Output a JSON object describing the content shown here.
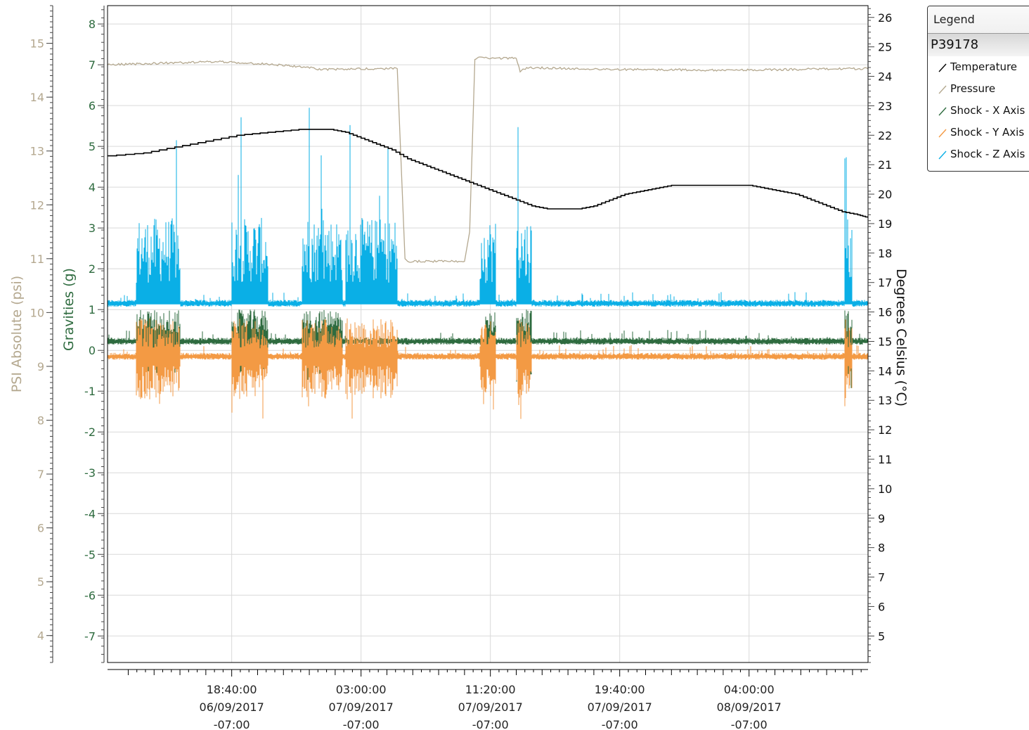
{
  "chart_data": {
    "type": "line",
    "x_axis": {
      "ticks": [
        {
          "time": "18:40:00",
          "date": "06/09/2017",
          "tz": "-07:00"
        },
        {
          "time": "03:00:00",
          "date": "07/09/2017",
          "tz": "-07:00"
        },
        {
          "time": "11:20:00",
          "date": "07/09/2017",
          "tz": "-07:00"
        },
        {
          "time": "19:40:00",
          "date": "07/09/2017",
          "tz": "-07:00"
        },
        {
          "time": "04:00:00",
          "date": "08/09/2017",
          "tz": "-07:00"
        }
      ],
      "range": [
        "06/09/2017 10:40:00",
        "08/09/2017 11:40:00"
      ]
    },
    "y_axes": {
      "psi": {
        "label": "PSI Absolute (psi)",
        "ticks": [
          4,
          5,
          6,
          7,
          8,
          9,
          10,
          11,
          12,
          13,
          14,
          15
        ],
        "range": [
          3.5,
          15.7
        ],
        "color": "#b4a88f"
      },
      "gravities": {
        "label": "Gravities (g)",
        "ticks": [
          -7,
          -6,
          -5,
          -4,
          -3,
          -2,
          -1,
          0,
          1,
          2,
          3,
          4,
          5,
          6,
          7,
          8
        ],
        "range": [
          -7.65,
          8.45
        ],
        "color": "#2e6b3f"
      },
      "celsius": {
        "label": "Degrees Celsius (°C)",
        "ticks": [
          5,
          6,
          7,
          8,
          9,
          10,
          11,
          12,
          13,
          14,
          15,
          16,
          17,
          18,
          19,
          20,
          21,
          22,
          23,
          24,
          25,
          26
        ],
        "range": [
          4.1,
          26.4
        ],
        "color": "#111111"
      }
    },
    "grid": true,
    "legend_position": "top-right",
    "legend": {
      "title": "Legend",
      "group": "P39178",
      "entries": [
        "Temperature",
        "Pressure",
        "Shock - X Axis",
        "Shock - Y Axis",
        "Shock - Z Axis"
      ]
    },
    "series": [
      {
        "name": "Temperature",
        "axis": "celsius",
        "color": "#000000",
        "x": [
          "06/09/2017 10:40",
          "06/09/2017 13:00",
          "06/09/2017 15:00",
          "06/09/2017 17:00",
          "06/09/2017 19:00",
          "06/09/2017 21:00",
          "06/09/2017 23:00",
          "07/09/2017 00:00",
          "07/09/2017 01:00",
          "07/09/2017 02:00",
          "07/09/2017 03:00",
          "07/09/2017 04:00",
          "07/09/2017 05:00",
          "07/09/2017 06:00",
          "07/09/2017 07:00",
          "07/09/2017 08:00",
          "07/09/2017 09:00",
          "07/09/2017 10:00",
          "07/09/2017 11:00",
          "07/09/2017 12:00",
          "07/09/2017 13:00",
          "07/09/2017 14:00",
          "07/09/2017 15:00",
          "07/09/2017 16:00",
          "07/09/2017 17:00",
          "07/09/2017 18:00",
          "07/09/2017 19:00",
          "07/09/2017 20:00",
          "07/09/2017 21:00",
          "07/09/2017 22:00",
          "07/09/2017 23:00",
          "08/09/2017 00:00",
          "08/09/2017 01:00",
          "08/09/2017 02:00",
          "08/09/2017 03:00",
          "08/09/2017 04:00",
          "08/09/2017 05:00",
          "08/09/2017 06:00",
          "08/09/2017 07:00",
          "08/09/2017 08:00",
          "08/09/2017 09:00",
          "08/09/2017 10:00",
          "08/09/2017 11:00",
          "08/09/2017 11:40"
        ],
        "values": [
          21.3,
          21.4,
          21.6,
          21.8,
          22.0,
          22.1,
          22.2,
          22.2,
          22.2,
          22.1,
          21.9,
          21.7,
          21.5,
          21.2,
          21.0,
          20.8,
          20.6,
          20.4,
          20.2,
          20.0,
          19.8,
          19.6,
          19.5,
          19.5,
          19.5,
          19.6,
          19.8,
          20.0,
          20.1,
          20.2,
          20.3,
          20.3,
          20.3,
          20.3,
          20.3,
          20.3,
          20.2,
          20.1,
          20.0,
          19.8,
          19.6,
          19.4,
          19.3,
          19.2
        ]
      },
      {
        "name": "Pressure",
        "axis": "psi",
        "color": "#b4a88f",
        "x": [
          "06/09/2017 10:40",
          "06/09/2017 14:00",
          "06/09/2017 18:00",
          "06/09/2017 21:00",
          "06/09/2017 23:30",
          "07/09/2017 00:30",
          "07/09/2017 02:00",
          "07/09/2017 05:20",
          "07/09/2017 05:50",
          "07/09/2017 06:00",
          "07/09/2017 09:40",
          "07/09/2017 10:00",
          "07/09/2017 10:20",
          "07/09/2017 10:30",
          "07/09/2017 13:00",
          "07/09/2017 13:15",
          "07/09/2017 13:40",
          "07/09/2017 18:00",
          "07/09/2017 22:00",
          "08/09/2017 03:00",
          "08/09/2017 08:00",
          "08/09/2017 11:40"
        ],
        "values": [
          14.6,
          14.63,
          14.66,
          14.61,
          14.56,
          14.51,
          14.52,
          14.53,
          11.0,
          10.95,
          10.95,
          11.5,
          14.7,
          14.73,
          14.72,
          14.47,
          14.55,
          14.52,
          14.51,
          14.5,
          14.52,
          14.53
        ]
      },
      {
        "name": "Shock - X Axis",
        "axis": "gravities",
        "color": "#2e6b3f",
        "bursts": [
          [
            "06/09/2017 12:30",
            "06/09/2017 15:20"
          ],
          [
            "06/09/2017 18:40",
            "06/09/2017 21:00"
          ],
          [
            "06/09/2017 23:10",
            "07/09/2017 01:50"
          ],
          [
            "07/09/2017 11:00",
            "07/09/2017 11:40"
          ],
          [
            "07/09/2017 13:00",
            "07/09/2017 14:00"
          ],
          [
            "08/09/2017 10:10",
            "08/09/2017 10:40"
          ]
        ],
        "baseline": 0.22,
        "peak_min": -0.95,
        "peak_max": 1.05
      },
      {
        "name": "Shock - Y Axis",
        "axis": "gravities",
        "color": "#f39a44",
        "bursts": [
          [
            "06/09/2017 12:30",
            "06/09/2017 15:20"
          ],
          [
            "06/09/2017 18:40",
            "06/09/2017 21:00"
          ],
          [
            "06/09/2017 23:10",
            "07/09/2017 01:50"
          ],
          [
            "07/09/2017 02:00",
            "07/09/2017 05:20"
          ],
          [
            "07/09/2017 10:40",
            "07/09/2017 11:40"
          ],
          [
            "07/09/2017 13:00",
            "07/09/2017 14:00"
          ],
          [
            "08/09/2017 10:10",
            "08/09/2017 10:40"
          ]
        ],
        "baseline": -0.15,
        "peak_min": -1.7,
        "peak_max": 0.9
      },
      {
        "name": "Shock - Z Axis",
        "axis": "gravities",
        "color": "#0aafe6",
        "bursts": [
          [
            "06/09/2017 12:30",
            "06/09/2017 15:20"
          ],
          [
            "06/09/2017 18:40",
            "06/09/2017 21:00"
          ],
          [
            "06/09/2017 23:10",
            "07/09/2017 01:50"
          ],
          [
            "07/09/2017 02:00",
            "07/09/2017 05:20"
          ],
          [
            "07/09/2017 10:40",
            "07/09/2017 11:40"
          ],
          [
            "07/09/2017 13:00",
            "07/09/2017 14:00"
          ],
          [
            "08/09/2017 10:10",
            "08/09/2017 10:40"
          ]
        ],
        "baseline": 1.15,
        "peak_max": 6.2
      }
    ]
  }
}
